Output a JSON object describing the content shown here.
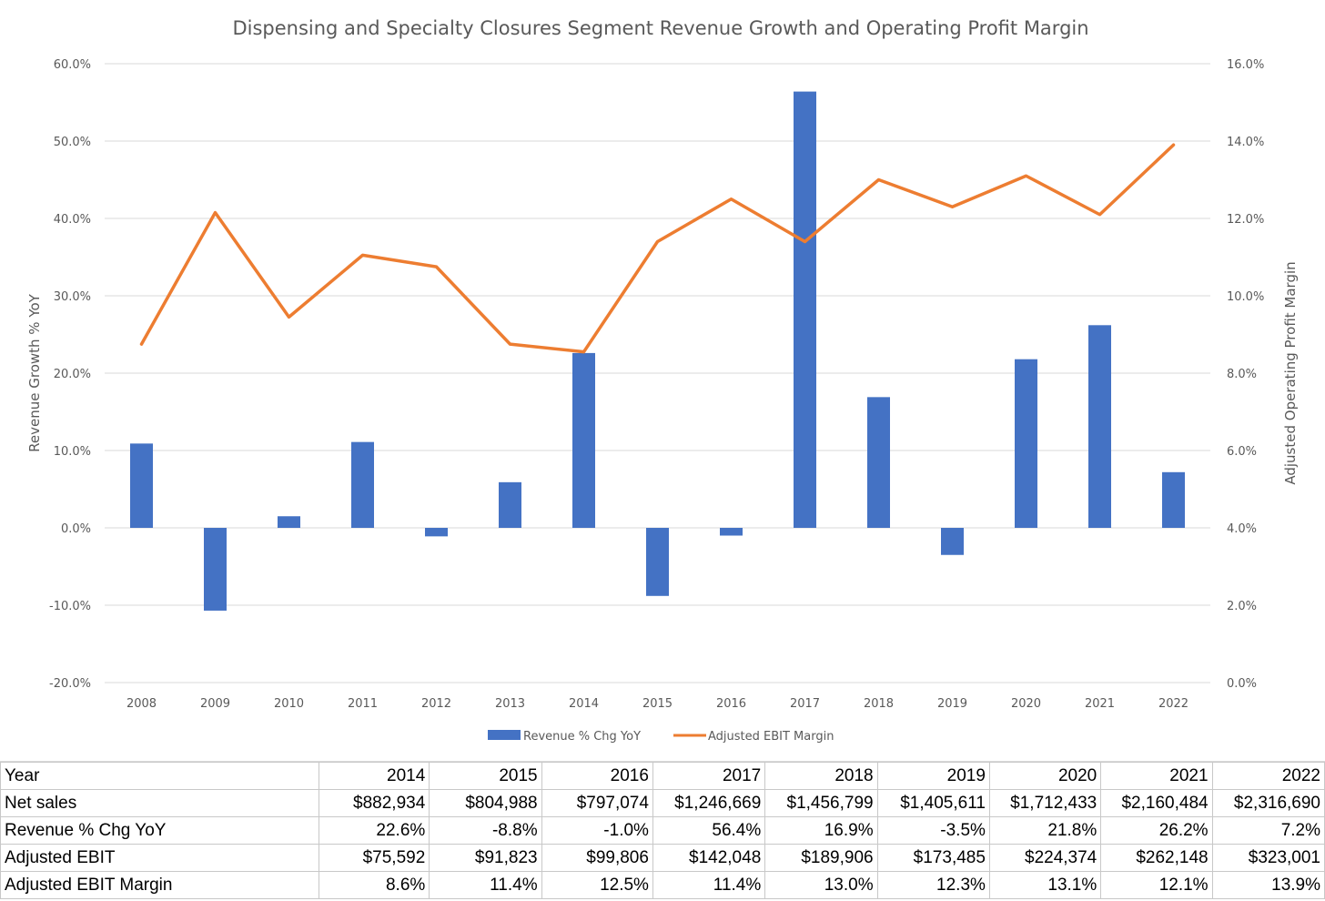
{
  "chart_data": {
    "type": "bar+line",
    "title": "Dispensing and Specialty Closures Segment Revenue Growth and Operating Profit Margin",
    "ylabel": "Revenue Growth % YoY",
    "y2label": "Adjusted Operating Profit Margin",
    "categories": [
      "2008",
      "2009",
      "2010",
      "2011",
      "2012",
      "2013",
      "2014",
      "2015",
      "2016",
      "2017",
      "2018",
      "2019",
      "2020",
      "2021",
      "2022"
    ],
    "series": [
      {
        "name": "Revenue % Chg YoY",
        "type": "bar",
        "axis": "left",
        "color": "#4472C4",
        "values": [
          0.109,
          -0.107,
          0.015,
          0.111,
          -0.011,
          0.059,
          0.226,
          -0.088,
          -0.01,
          0.564,
          0.169,
          -0.035,
          0.218,
          0.262,
          0.072
        ]
      },
      {
        "name": "Adjusted EBIT Margin",
        "type": "line",
        "axis": "right",
        "color": "#ED7D31",
        "values": [
          0.0875,
          0.1215,
          0.0945,
          0.1105,
          0.1075,
          0.0875,
          0.0855,
          0.114,
          0.125,
          0.114,
          0.13,
          0.123,
          0.131,
          0.121,
          0.139
        ]
      }
    ],
    "ylim": [
      -0.2,
      0.6
    ],
    "yticks": [
      -0.2,
      -0.1,
      0.0,
      0.1,
      0.2,
      0.3,
      0.4,
      0.5,
      0.6
    ],
    "ytick_labels": [
      "-20.0%",
      "-10.0%",
      "0.0%",
      "10.0%",
      "20.0%",
      "30.0%",
      "40.0%",
      "50.0%",
      "60.0%"
    ],
    "y2lim": [
      0.0,
      0.16
    ],
    "y2ticks": [
      0.0,
      0.02,
      0.04,
      0.06,
      0.08,
      0.1,
      0.12,
      0.14,
      0.16
    ],
    "y2tick_labels": [
      "0.0%",
      "2.0%",
      "4.0%",
      "6.0%",
      "8.0%",
      "10.0%",
      "12.0%",
      "14.0%",
      "16.0%"
    ],
    "grid": true,
    "legend": "bottom"
  },
  "table": {
    "header": [
      "Year",
      "2014",
      "2015",
      "2016",
      "2017",
      "2018",
      "2019",
      "2020",
      "2021",
      "2022"
    ],
    "rows": [
      [
        "Net sales",
        "$882,934",
        "$804,988",
        "$797,074",
        "$1,246,669",
        "$1,456,799",
        "$1,405,611",
        "$1,712,433",
        "$2,160,484",
        "$2,316,690"
      ],
      [
        "Revenue % Chg YoY",
        "22.6%",
        "-8.8%",
        "-1.0%",
        "56.4%",
        "16.9%",
        "-3.5%",
        "21.8%",
        "26.2%",
        "7.2%"
      ],
      [
        "Adjusted EBIT",
        "$75,592",
        "$91,823",
        "$99,806",
        "$142,048",
        "$189,906",
        "$173,485",
        "$224,374",
        "$262,148",
        "$323,001"
      ],
      [
        "Adjusted EBIT Margin",
        "8.6%",
        "11.4%",
        "12.5%",
        "11.4%",
        "13.0%",
        "12.3%",
        "13.1%",
        "12.1%",
        "13.9%"
      ]
    ]
  }
}
